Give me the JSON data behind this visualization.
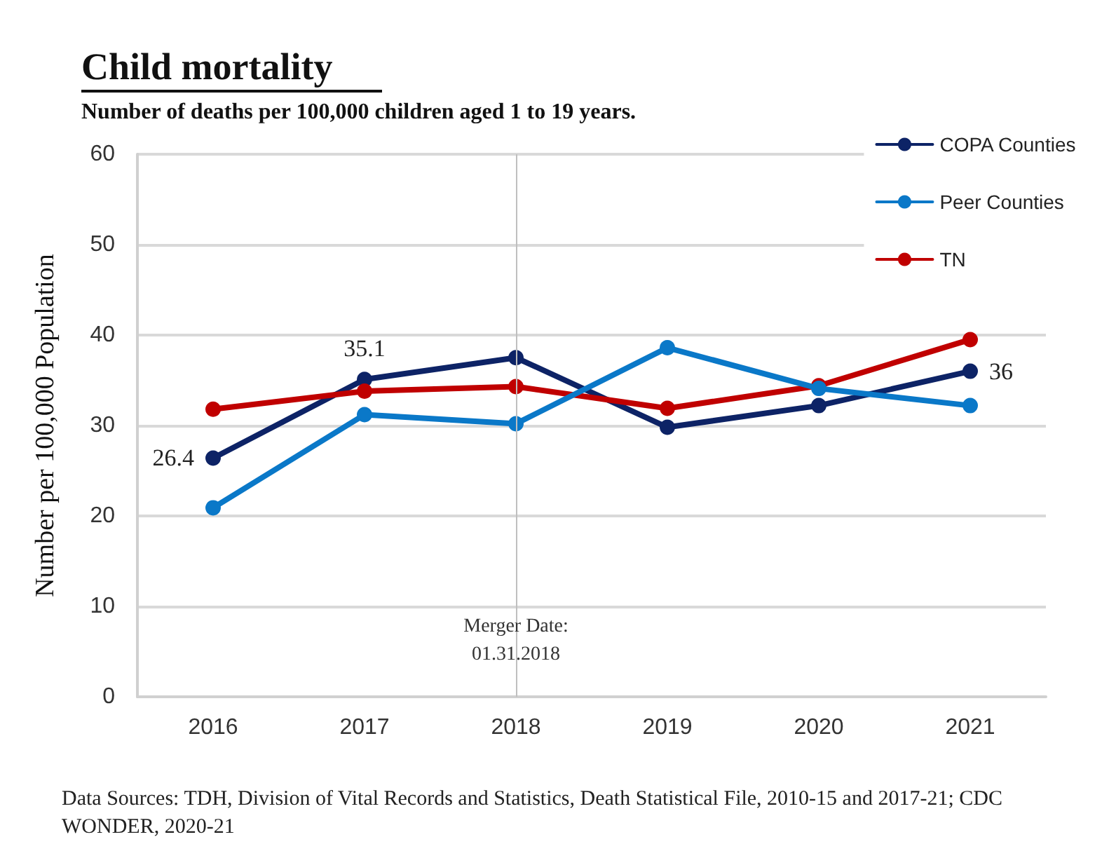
{
  "chart_data": {
    "type": "line",
    "title": "Child mortality",
    "subtitle": "Number of deaths per 100,000 children aged 1 to 19 years.",
    "ylabel": "Number per 100,000 Population",
    "categories": [
      "2016",
      "2017",
      "2018",
      "2019",
      "2020",
      "2021"
    ],
    "series": [
      {
        "name": "COPA Counties",
        "color": "#0d2366",
        "values": [
          26.4,
          35.1,
          37.5,
          29.8,
          32.2,
          36
        ],
        "value_labels": [
          "26.4",
          "35.1",
          null,
          null,
          null,
          "36"
        ]
      },
      {
        "name": "Peer Counties",
        "color": "#0a78c8",
        "values": [
          20.9,
          31.2,
          30.2,
          38.6,
          34.1,
          32.2
        ]
      },
      {
        "name": "TN",
        "color": "#c00000",
        "values": [
          31.8,
          33.8,
          34.3,
          31.9,
          34.4,
          39.5
        ]
      }
    ],
    "ylim": [
      0,
      60
    ],
    "yticks": [
      0,
      10,
      20,
      30,
      40,
      50,
      60
    ],
    "grid": "y",
    "legend": "top right",
    "marker": "circle",
    "line_style": "solid",
    "ref_lines": [
      {
        "axis": "x",
        "value": "2018",
        "label": "Merger Date:\n01.31.2018",
        "color": "#bfbfbf"
      }
    ],
    "annotations": [
      "Data Sources: TDH, Division of Vital Records and Statistics, Death Statistical File, 2010-15 and 2017-21; CDC WONDER, 2020-21"
    ]
  }
}
